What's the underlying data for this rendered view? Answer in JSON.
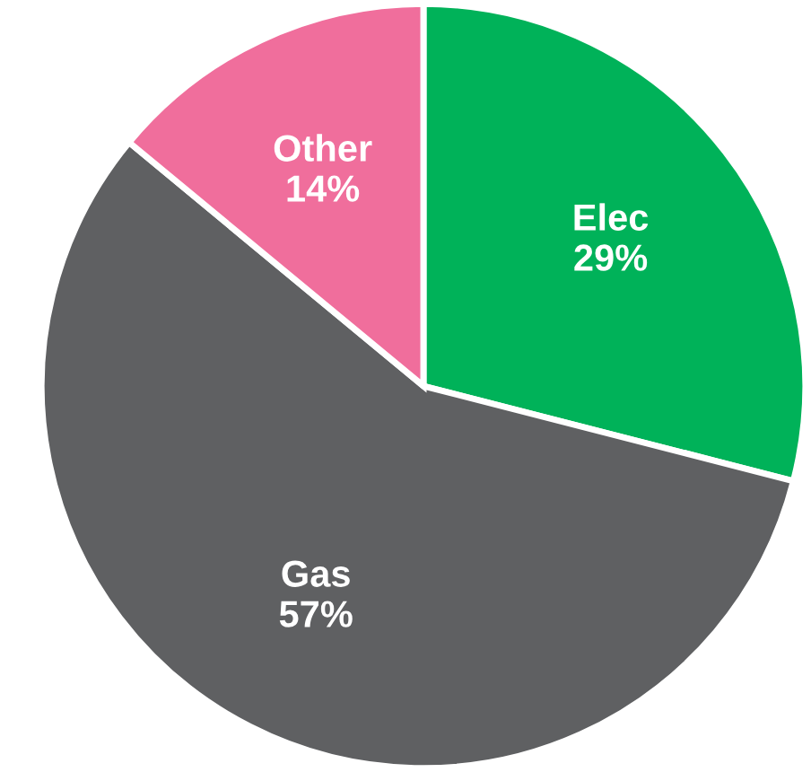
{
  "chart_data": {
    "type": "pie",
    "categories": [
      "Elec",
      "Gas",
      "Other"
    ],
    "values": [
      29,
      57,
      14
    ],
    "colors": [
      "#00b259",
      "#5f6062",
      "#f06e9c"
    ],
    "value_labels": [
      "29%",
      "57%",
      "14%"
    ],
    "legend": false
  }
}
